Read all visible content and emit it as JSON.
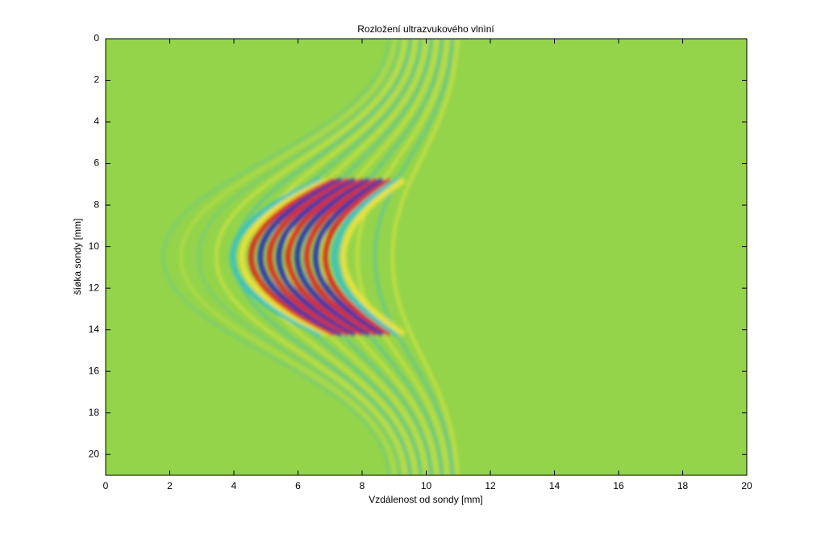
{
  "chart_data": {
    "type": "heatmap",
    "title": "Rozložení ultrazvukového vlnìní",
    "x_label": "Vzdálenost od sondy [mm]",
    "y_label": "šíøka sondy [mm]",
    "xlim": [
      0,
      20
    ],
    "xticks": [
      0,
      2,
      4,
      6,
      8,
      10,
      12,
      14,
      16,
      18,
      20
    ],
    "ylim": [
      21,
      0
    ],
    "yticks": [
      0,
      2,
      4,
      6,
      8,
      10,
      12,
      14,
      16,
      18,
      20
    ],
    "background_color": "#94d44a"
  }
}
